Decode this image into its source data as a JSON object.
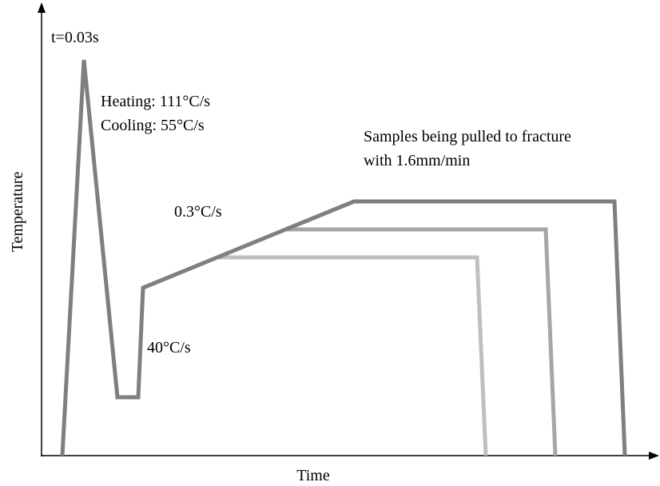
{
  "labels": {
    "peak_time": "t=0.03s",
    "heating": "Heating: 111°C/s",
    "cooling": "Cooling: 55°C/s",
    "pull_line1": "Samples being pulled to fracture",
    "pull_line2": "with 1.6mm/min",
    "slow_rate": "0.3°C/s",
    "fast_rate": "40°C/s"
  },
  "axes": {
    "y_label": "Temperature",
    "x_label": "Time"
  }
}
